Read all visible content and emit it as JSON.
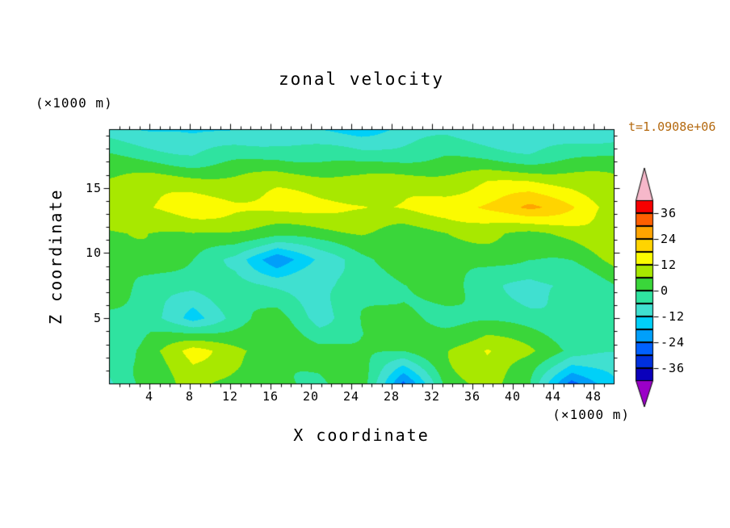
{
  "figure": {
    "title": "zonal velocity",
    "time_label": "t=1.0908e+06",
    "x_axis": {
      "label": "X coordinate",
      "unit": "(×1000 m)"
    },
    "z_axis": {
      "label": "Z coordinate",
      "unit": "(×1000 m)"
    }
  },
  "colors": {
    "text": "#000000",
    "time_label": "#b4690f",
    "frame": "#000000",
    "background": "#ffffff"
  },
  "chart_data": {
    "type": "heatmap",
    "title": "zonal velocity",
    "xlabel": "X coordinate (×1000 m)",
    "ylabel": "Z coordinate (×1000 m)",
    "time_label": "t=1.0908e+06",
    "x_range": [
      0,
      50
    ],
    "z_range": [
      0,
      19.5
    ],
    "x_ticks": [
      4,
      8,
      12,
      16,
      20,
      24,
      28,
      32,
      36,
      40,
      44,
      48
    ],
    "z_ticks": [
      5,
      10,
      15
    ],
    "contour_interval": 6,
    "x": [
      0,
      4.17,
      8.33,
      12.5,
      16.67,
      20.83,
      25,
      29.17,
      33.33,
      37.5,
      41.67,
      45.83,
      50
    ],
    "z": [
      0,
      2.5,
      5,
      7.5,
      9.5,
      11.5,
      13.5,
      15.5,
      17.5,
      19.5
    ],
    "values": [
      [
        -8,
        2,
        10,
        4,
        2,
        0,
        2,
        -26,
        2,
        8,
        2,
        -26,
        -14
      ],
      [
        -6,
        4,
        13,
        8,
        4,
        2,
        3,
        0,
        4,
        13,
        6,
        -2,
        -4
      ],
      [
        0,
        -4,
        -14,
        -4,
        2,
        -8,
        0,
        3,
        0,
        -2,
        -4,
        -6,
        -2
      ],
      [
        2,
        0,
        -4,
        -2,
        -6,
        -10,
        -4,
        0,
        2,
        -2,
        -8,
        -6,
        0
      ],
      [
        3,
        2,
        0,
        -6,
        -24,
        -10,
        -2,
        2,
        3,
        2,
        0,
        2,
        8
      ],
      [
        4,
        5,
        6,
        4,
        3,
        5,
        6,
        4,
        5,
        6,
        5,
        8,
        12
      ],
      [
        12,
        13,
        15,
        13,
        14,
        13,
        14,
        13,
        15,
        20,
        24,
        18,
        10
      ],
      [
        8,
        10,
        9,
        8,
        9,
        8,
        8,
        9,
        10,
        12,
        12,
        10,
        6
      ],
      [
        -1,
        -3,
        -5,
        -2,
        -1,
        -3,
        -5,
        -3,
        -1,
        -2,
        -4,
        -2,
        0
      ],
      [
        -10,
        -13,
        -15,
        -11,
        -10,
        -12,
        -14,
        -12,
        -9,
        -11,
        -13,
        -11,
        -9
      ]
    ],
    "colorbar": {
      "min": -42,
      "max": 42,
      "labels": [
        "36",
        "24",
        "12",
        "0",
        "-12",
        "-24",
        "-36"
      ],
      "labeled_values": [
        36,
        24,
        12,
        0,
        -12,
        -24,
        -36
      ],
      "band_colors_low_to_high": [
        "#0a00bb",
        "#0030dd",
        "#0061ff",
        "#009ffa",
        "#00d0f8",
        "#40e0d0",
        "#2fe3a0",
        "#3ad63a",
        "#a8e800",
        "#fbfb00",
        "#ffd400",
        "#ffa500",
        "#ff5f00",
        "#f60000"
      ],
      "under_color": "#9b00c8",
      "over_color": "#f6b8ca"
    }
  }
}
